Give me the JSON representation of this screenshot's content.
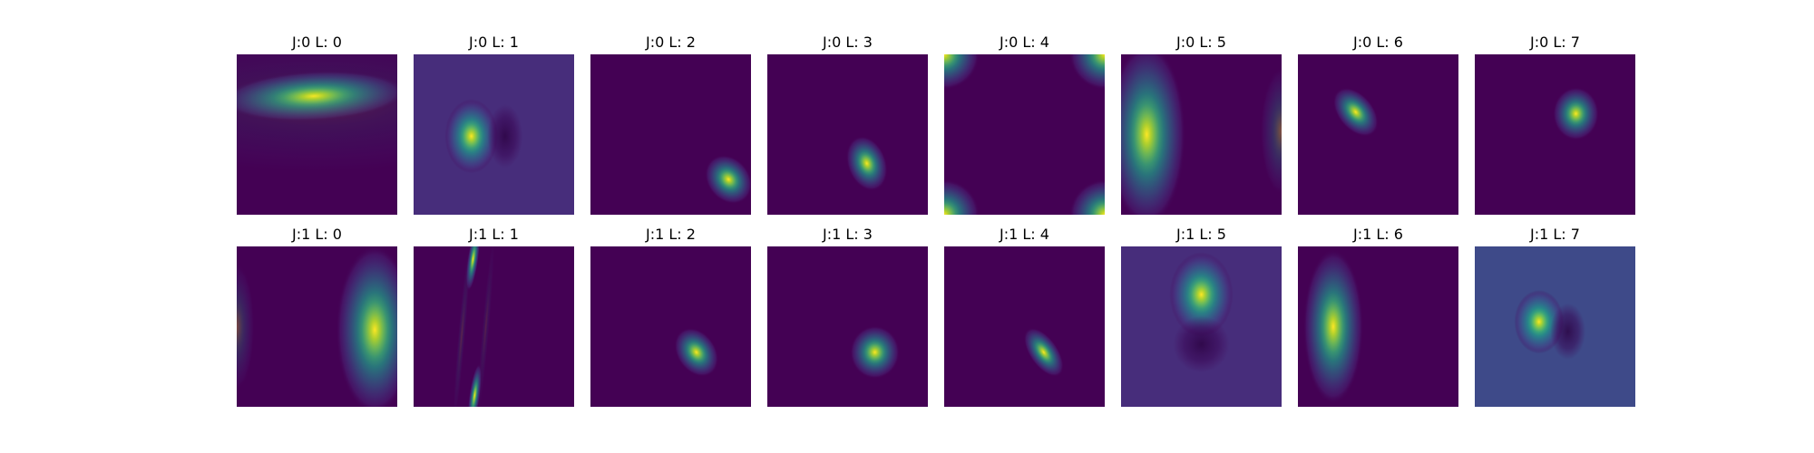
{
  "chart_data": {
    "type": "heatmap",
    "description_free": true,
    "colormap": "viridis",
    "grid": false,
    "axes_visible": false,
    "rows": 2,
    "cols": 8,
    "panels": [
      {
        "title": "J:0 L: 0",
        "background": "#440154",
        "blobs": [
          {
            "cx": 0.48,
            "cy": 0.26,
            "sx": 0.26,
            "sy": 0.07,
            "angle": -3,
            "amp": 1.0
          },
          {
            "cx": 0.5,
            "cy": 0.3,
            "sx": 0.7,
            "sy": 0.2,
            "angle": 0,
            "amp": 0.12
          }
        ]
      },
      {
        "title": "J:0 L: 1",
        "background": "#472d7b",
        "blobs": [
          {
            "cx": 0.36,
            "cy": 0.51,
            "sx": 0.075,
            "sy": 0.105,
            "angle": 0,
            "amp": 1.0
          },
          {
            "cx": 0.57,
            "cy": 0.51,
            "sx": 0.05,
            "sy": 0.09,
            "angle": 0,
            "amp": -0.5
          }
        ]
      },
      {
        "title": "J:0 L: 2",
        "background": "#440154",
        "blobs": [
          {
            "cx": 0.86,
            "cy": 0.78,
            "sx": 0.06,
            "sy": 0.075,
            "angle": -40,
            "amp": 1.0
          }
        ]
      },
      {
        "title": "J:0 L: 3",
        "background": "#440154",
        "blobs": [
          {
            "cx": 0.62,
            "cy": 0.68,
            "sx": 0.055,
            "sy": 0.08,
            "angle": -20,
            "amp": 1.0
          }
        ]
      },
      {
        "title": "J:0 L: 4",
        "background": "#440154",
        "blobs": [
          {
            "cx": 0.0,
            "cy": 0.0,
            "sx": 0.1,
            "sy": 0.1,
            "angle": 0,
            "amp": 1.0
          },
          {
            "cx": 1.0,
            "cy": 0.0,
            "sx": 0.1,
            "sy": 0.1,
            "angle": 0,
            "amp": 1.0
          },
          {
            "cx": 0.0,
            "cy": 1.0,
            "sx": 0.1,
            "sy": 0.1,
            "angle": 0,
            "amp": 1.0
          },
          {
            "cx": 1.0,
            "cy": 1.0,
            "sx": 0.1,
            "sy": 0.1,
            "angle": 0,
            "amp": 1.0
          }
        ]
      },
      {
        "title": "J:0 L: 5",
        "background": "#440154",
        "blobs": [
          {
            "cx": 0.16,
            "cy": 0.5,
            "sx": 0.11,
            "sy": 0.26,
            "angle": 0,
            "amp": 1.0
          },
          {
            "cx": 1.0,
            "cy": 0.48,
            "sx": 0.06,
            "sy": 0.18,
            "angle": 0,
            "amp": 0.35
          }
        ]
      },
      {
        "title": "J:0 L: 6",
        "background": "#440154",
        "blobs": [
          {
            "cx": 0.36,
            "cy": 0.36,
            "sx": 0.05,
            "sy": 0.08,
            "angle": -40,
            "amp": 1.0
          }
        ]
      },
      {
        "title": "J:0 L: 7",
        "background": "#440154",
        "blobs": [
          {
            "cx": 0.63,
            "cy": 0.37,
            "sx": 0.065,
            "sy": 0.075,
            "angle": 0,
            "amp": 1.0
          }
        ]
      },
      {
        "title": "J:1 L: 0",
        "background": "#440154",
        "blobs": [
          {
            "cx": 0.86,
            "cy": 0.52,
            "sx": 0.11,
            "sy": 0.24,
            "angle": 0,
            "amp": 1.0
          },
          {
            "cx": 0.0,
            "cy": 0.5,
            "sx": 0.05,
            "sy": 0.18,
            "angle": 0,
            "amp": 0.3
          }
        ]
      },
      {
        "title": "J:1 L: 1",
        "background": "#440154",
        "blobs": [
          {
            "cx": 0.37,
            "cy": 0.08,
            "sx": 0.015,
            "sy": 0.09,
            "angle": 8,
            "amp": 1.0
          },
          {
            "cx": 0.38,
            "cy": 0.93,
            "sx": 0.015,
            "sy": 0.09,
            "angle": 8,
            "amp": 1.0
          },
          {
            "cx": 0.3,
            "cy": 0.55,
            "sx": 0.01,
            "sy": 0.25,
            "angle": 5,
            "amp": 0.15
          },
          {
            "cx": 0.45,
            "cy": 0.5,
            "sx": 0.01,
            "sy": 0.25,
            "angle": 5,
            "amp": 0.12
          }
        ]
      },
      {
        "title": "J:1 L: 2",
        "background": "#440154",
        "blobs": [
          {
            "cx": 0.66,
            "cy": 0.66,
            "sx": 0.055,
            "sy": 0.075,
            "angle": -35,
            "amp": 1.0
          }
        ]
      },
      {
        "title": "J:1 L: 3",
        "background": "#440154",
        "blobs": [
          {
            "cx": 0.67,
            "cy": 0.66,
            "sx": 0.07,
            "sy": 0.075,
            "angle": 0,
            "amp": 1.0
          }
        ]
      },
      {
        "title": "J:1 L: 4",
        "background": "#440154",
        "blobs": [
          {
            "cx": 0.62,
            "cy": 0.66,
            "sx": 0.04,
            "sy": 0.08,
            "angle": -35,
            "amp": 1.0
          }
        ]
      },
      {
        "title": "J:1 L: 5",
        "background": "#472d7b",
        "blobs": [
          {
            "cx": 0.5,
            "cy": 0.3,
            "sx": 0.09,
            "sy": 0.12,
            "angle": 0,
            "amp": 1.0
          },
          {
            "cx": 0.5,
            "cy": 0.61,
            "sx": 0.08,
            "sy": 0.08,
            "angle": 0,
            "amp": -0.5
          }
        ]
      },
      {
        "title": "J:1 L: 6",
        "background": "#440154",
        "blobs": [
          {
            "cx": 0.22,
            "cy": 0.5,
            "sx": 0.085,
            "sy": 0.22,
            "angle": 0,
            "amp": 1.0
          }
        ]
      },
      {
        "title": "J:1 L: 7",
        "background": "#3e4a89",
        "blobs": [
          {
            "cx": 0.4,
            "cy": 0.47,
            "sx": 0.07,
            "sy": 0.09,
            "angle": 0,
            "amp": 1.0
          },
          {
            "cx": 0.58,
            "cy": 0.53,
            "sx": 0.05,
            "sy": 0.08,
            "angle": 0,
            "amp": -0.5
          }
        ]
      }
    ]
  }
}
